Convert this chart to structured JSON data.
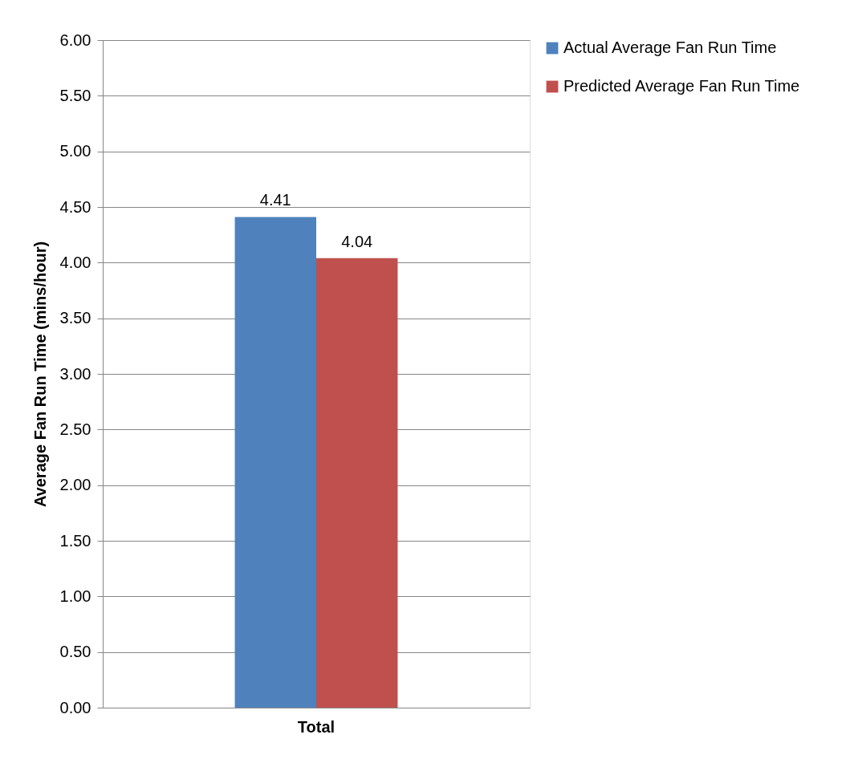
{
  "chart_data": {
    "type": "bar",
    "ylabel": "Average Fan Run Time (mins/hour)",
    "categories": [
      "Total"
    ],
    "series": [
      {
        "name": "Actual Average Fan Run Time",
        "color": "#4f81bd",
        "values": [
          4.41
        ]
      },
      {
        "name": "Predicted Average Fan Run Time",
        "color": "#c0504d",
        "values": [
          4.04
        ]
      }
    ],
    "ylim": [
      0,
      6
    ],
    "yticks": [
      {
        "value": 0,
        "label": "0.00"
      },
      {
        "value": 0.5,
        "label": "0.50"
      },
      {
        "value": 1,
        "label": "1.00"
      },
      {
        "value": 1.5,
        "label": "1.50"
      },
      {
        "value": 2,
        "label": "2.00"
      },
      {
        "value": 2.5,
        "label": "2.50"
      },
      {
        "value": 3,
        "label": "3.00"
      },
      {
        "value": 3.5,
        "label": "3.50"
      },
      {
        "value": 4,
        "label": "4.00"
      },
      {
        "value": 4.5,
        "label": "4.50"
      },
      {
        "value": 5,
        "label": "5.00"
      },
      {
        "value": 5.5,
        "label": "5.50"
      },
      {
        "value": 6,
        "label": "6.00"
      }
    ],
    "grid": "y",
    "legend": "right",
    "data_labels": true
  }
}
